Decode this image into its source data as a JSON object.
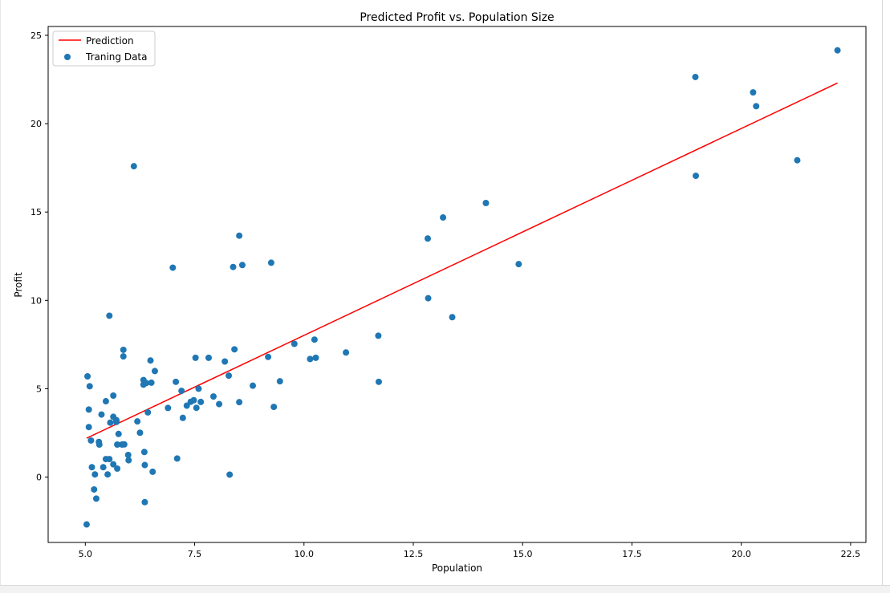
{
  "chart_data": {
    "type": "scatter",
    "title": "Predicted Profit vs. Population Size",
    "xlabel": "Population",
    "ylabel": "Profit",
    "xlim": [
      4.15,
      22.85
    ],
    "ylim": [
      -3.7,
      25.5
    ],
    "xticks": [
      "5.0",
      "7.5",
      "10.0",
      "12.5",
      "15.0",
      "17.5",
      "20.0",
      "22.5"
    ],
    "xtick_values": [
      5.0,
      7.5,
      10.0,
      12.5,
      15.0,
      17.5,
      20.0,
      22.5
    ],
    "yticks": [
      "0",
      "5",
      "10",
      "15",
      "20",
      "25"
    ],
    "ytick_values": [
      0,
      5,
      10,
      15,
      20,
      25
    ],
    "grid": false,
    "legend_position": "upper-left",
    "colors": {
      "prediction": "#ff0000",
      "training": "#1f77b4"
    },
    "series": [
      {
        "name": "Prediction",
        "kind": "line",
        "color": "#ff0000",
        "x": [
          5.03,
          22.2
        ],
        "y": [
          2.2,
          22.3
        ]
      },
      {
        "name": "Traning Data",
        "kind": "scatter",
        "color": "#1f77b4",
        "points": [
          [
            5.03,
            -2.68
          ],
          [
            5.05,
            5.7
          ],
          [
            5.08,
            3.82
          ],
          [
            5.08,
            2.83
          ],
          [
            5.1,
            5.14
          ],
          [
            5.13,
            2.07
          ],
          [
            5.15,
            0.56
          ],
          [
            5.2,
            -0.7
          ],
          [
            5.22,
            0.15
          ],
          [
            5.25,
            -1.22
          ],
          [
            5.31,
            1.99
          ],
          [
            5.32,
            1.84
          ],
          [
            5.37,
            3.54
          ],
          [
            5.41,
            0.56
          ],
          [
            5.47,
            4.29
          ],
          [
            5.47,
            1.02
          ],
          [
            5.51,
            0.15
          ],
          [
            5.55,
            1.02
          ],
          [
            5.55,
            9.13
          ],
          [
            5.57,
            3.08
          ],
          [
            5.64,
            3.41
          ],
          [
            5.64,
            0.72
          ],
          [
            5.64,
            4.61
          ],
          [
            5.71,
            3.22
          ],
          [
            5.71,
            3.12
          ],
          [
            5.73,
            1.84
          ],
          [
            5.73,
            0.48
          ],
          [
            5.76,
            2.44
          ],
          [
            5.84,
            1.84
          ],
          [
            5.87,
            7.2
          ],
          [
            5.87,
            6.83
          ],
          [
            5.89,
            1.85
          ],
          [
            5.98,
            1.25
          ],
          [
            5.99,
            0.95
          ],
          [
            6.11,
            17.59
          ],
          [
            6.19,
            3.15
          ],
          [
            6.25,
            2.51
          ],
          [
            6.33,
            5.23
          ],
          [
            6.33,
            5.49
          ],
          [
            6.35,
            1.42
          ],
          [
            6.36,
            0.68
          ],
          [
            6.36,
            -1.42
          ],
          [
            6.39,
            5.32
          ],
          [
            6.43,
            3.66
          ],
          [
            6.49,
            6.6
          ],
          [
            6.51,
            5.34
          ],
          [
            6.54,
            0.3
          ],
          [
            6.59,
            6.0
          ],
          [
            6.89,
            3.91
          ],
          [
            7.0,
            11.85
          ],
          [
            7.07,
            5.39
          ],
          [
            7.1,
            1.05
          ],
          [
            7.2,
            4.88
          ],
          [
            7.23,
            3.35
          ],
          [
            7.32,
            4.04
          ],
          [
            7.41,
            4.26
          ],
          [
            7.48,
            4.35
          ],
          [
            7.52,
            6.75
          ],
          [
            7.54,
            3.92
          ],
          [
            7.59,
            5.0
          ],
          [
            7.64,
            4.25
          ],
          [
            7.82,
            6.75
          ],
          [
            7.93,
            4.56
          ],
          [
            8.06,
            4.13
          ],
          [
            8.19,
            6.54
          ],
          [
            8.28,
            5.74
          ],
          [
            8.3,
            0.14
          ],
          [
            8.38,
            11.89
          ],
          [
            8.41,
            7.23
          ],
          [
            8.52,
            13.66
          ],
          [
            8.52,
            4.24
          ],
          [
            8.59,
            12.0
          ],
          [
            8.83,
            5.17
          ],
          [
            9.18,
            6.8
          ],
          [
            9.25,
            12.13
          ],
          [
            9.31,
            3.97
          ],
          [
            9.45,
            5.42
          ],
          [
            9.78,
            7.54
          ],
          [
            10.14,
            6.68
          ],
          [
            10.24,
            7.78
          ],
          [
            10.27,
            6.75
          ],
          [
            10.96,
            7.05
          ],
          [
            11.7,
            8.0
          ],
          [
            11.71,
            5.39
          ],
          [
            12.83,
            13.5
          ],
          [
            12.84,
            10.12
          ],
          [
            13.18,
            14.69
          ],
          [
            13.39,
            9.05
          ],
          [
            14.16,
            15.51
          ],
          [
            14.91,
            12.05
          ],
          [
            18.95,
            22.64
          ],
          [
            18.96,
            17.05
          ],
          [
            20.27,
            21.77
          ],
          [
            20.34,
            20.99
          ],
          [
            21.28,
            17.93
          ],
          [
            22.2,
            24.15
          ]
        ]
      }
    ]
  }
}
